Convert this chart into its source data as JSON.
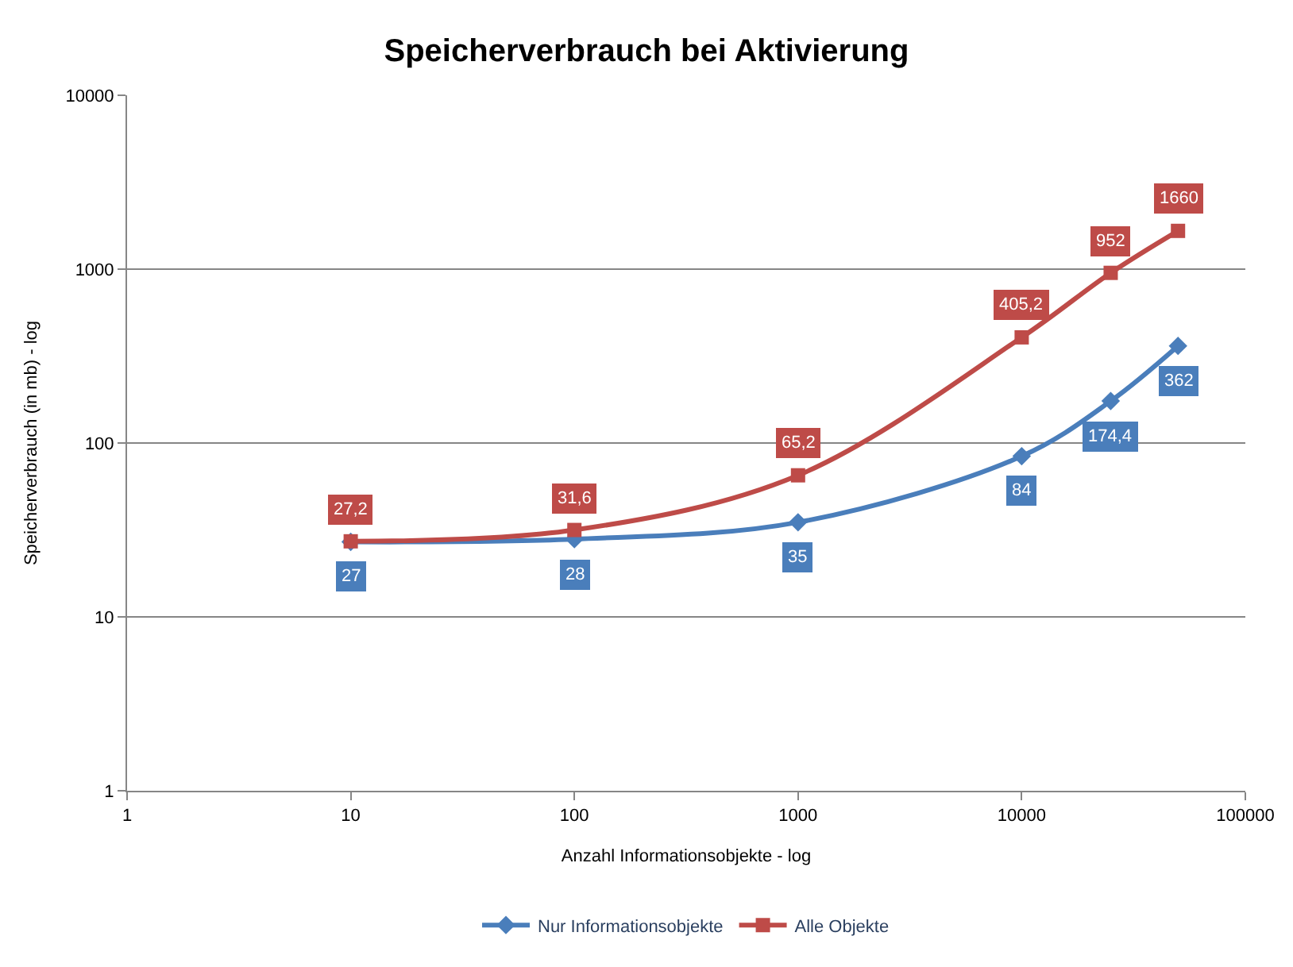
{
  "chart_data": {
    "type": "line",
    "title": "Speicherverbrauch bei Aktivierung",
    "xlabel": "Anzahl Informationsobjekte - log",
    "ylabel": "Speicherverbrauch (in mb) - log",
    "x": [
      10,
      100,
      1000,
      10000,
      25000,
      50000
    ],
    "series": [
      {
        "name": "Nur Informationsobjekte",
        "color": "#4a7ebb",
        "marker": "diamond",
        "values": [
          27,
          28,
          35,
          84,
          174.4,
          362
        ],
        "value_labels": [
          "27",
          "28",
          "35",
          "84",
          "174,4",
          "362"
        ]
      },
      {
        "name": "Alle Objekte",
        "color": "#be4b48",
        "marker": "square",
        "values": [
          27.2,
          31.6,
          65.2,
          405.2,
          952,
          1660
        ],
        "value_labels": [
          "27,2",
          "31,6",
          "65,2",
          "405,2",
          "952",
          "1660"
        ]
      }
    ],
    "log": "xy",
    "xlim": [
      1,
      100000
    ],
    "ylim": [
      1,
      10000
    ],
    "xticks": [
      1,
      10,
      100,
      1000,
      10000,
      100000
    ],
    "yticks": [
      1,
      10,
      100,
      1000,
      10000
    ],
    "grid": "y",
    "legend": "bottom",
    "line_style": "solid"
  }
}
